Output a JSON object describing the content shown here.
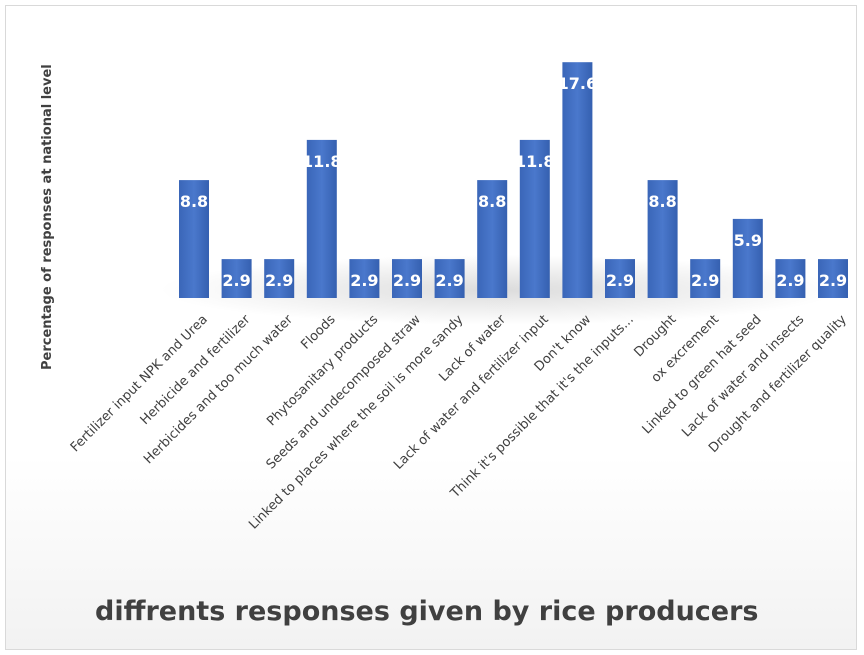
{
  "chart_data": {
    "type": "bar",
    "title": "diffrents responses given by rice producers",
    "ylabel": "Percentage of responses at national level",
    "xlabel": "",
    "ylim": [
      0,
      18
    ],
    "grid": false,
    "legend": "none",
    "bar_color": "#4472C4",
    "categories": [
      "Fertilizer input NPK and Urea",
      "Herbicide and fertilizer",
      "Herbicides and too much water",
      "Floods",
      "Phytosanitary products",
      "Seeds and undecomposed straw",
      "Linked to places where the soil is more sandy",
      "Lack of water",
      "Lack of water and fertilizer input",
      "Don't know",
      "Think it's possible that it's the inputs...",
      "Drought",
      "ox excrement",
      "Linked to green hat seed",
      "Lack of water and insects",
      "Drought and fertilizer quality"
    ],
    "values": [
      8.8,
      2.9,
      2.9,
      11.8,
      2.9,
      2.9,
      2.9,
      8.8,
      11.8,
      17.6,
      2.9,
      8.8,
      2.9,
      5.9,
      2.9,
      2.9
    ],
    "data_labels": [
      "8.8",
      "2.9",
      "2.9",
      "11.8",
      "2.9",
      "2.9",
      "2.9",
      "8.8",
      "11.8",
      "17.6",
      "2.9",
      "8.8",
      "2.9",
      "5.9",
      "2.9",
      "2.9"
    ]
  }
}
